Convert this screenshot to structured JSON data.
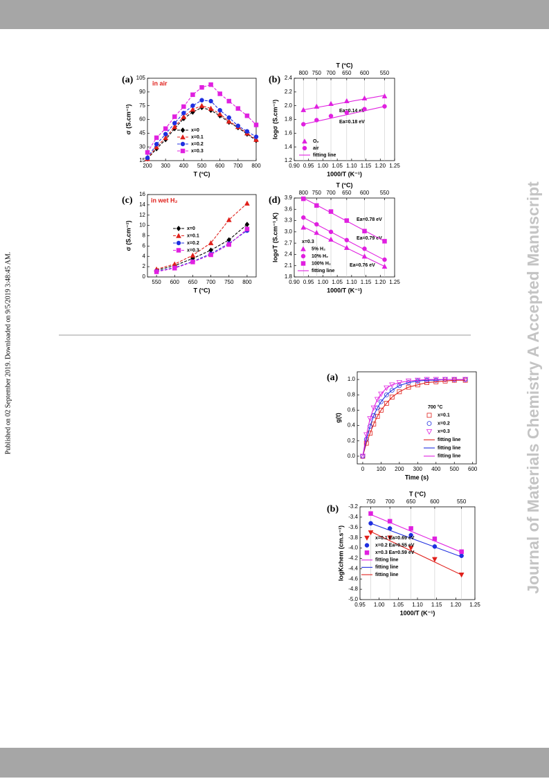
{
  "side_note": "Published on 02 September 2019. Downloaded on 9/5/2019 3:48:45 AM.",
  "watermark": "Journal of Materials Chemistry A Accepted Manuscript",
  "chart_data": [
    {
      "type": "line",
      "panel_label": "(a)",
      "annotations": [
        {
          "text": "in air",
          "color": "#e0201b"
        }
      ],
      "xlabel": "T (°C)",
      "ylabel": "σ (S.cm⁻¹)",
      "xlim": [
        200,
        800
      ],
      "xticks": [
        200,
        300,
        400,
        500,
        600,
        700,
        800
      ],
      "ylim": [
        15,
        105
      ],
      "yticks": [
        15,
        30,
        45,
        60,
        75,
        90,
        105
      ],
      "x": [
        200,
        250,
        300,
        350,
        400,
        450,
        500,
        550,
        600,
        650,
        700,
        750,
        800
      ],
      "series": [
        {
          "name": "x=0",
          "color": "#000000",
          "marker": "diamond",
          "line": "dash",
          "values": [
            17,
            28,
            38,
            50,
            61,
            68,
            73,
            70,
            64,
            57,
            51,
            44,
            37
          ]
        },
        {
          "name": "x=0.1",
          "color": "#e0201b",
          "marker": "triangle",
          "line": "dash",
          "values": [
            17,
            30,
            40,
            52,
            63,
            71,
            75,
            72,
            66,
            58,
            52,
            45,
            38
          ]
        },
        {
          "name": "x=0.2",
          "color": "#1f2fe0",
          "marker": "circle",
          "line": "dash",
          "values": [
            18,
            33,
            44,
            56,
            67,
            75,
            81,
            80,
            70,
            62,
            53,
            47,
            41
          ]
        },
        {
          "name": "x=0.3",
          "color": "#e020e0",
          "marker": "square",
          "line": "dash",
          "values": [
            24,
            40,
            50,
            63,
            74,
            87,
            95,
            98,
            88,
            80,
            72,
            64,
            54
          ]
        }
      ]
    },
    {
      "type": "scatter",
      "panel_label": "(b)",
      "annotations": [
        {
          "text": "Ea=0.14 eV",
          "color": "#000000"
        },
        {
          "text": "Ea=0.18 eV",
          "color": "#000000"
        }
      ],
      "xlabel": "1000/T (K⁻¹)",
      "ylabel": "logσ (S.cm⁻¹)",
      "x2label": "T (°C)",
      "x2grid": true,
      "xlim": [
        0.9,
        1.25
      ],
      "xticks": [
        {
          "value": 0.9,
          "label": "0.90"
        },
        0.95,
        {
          "value": 1,
          "label": "1.00"
        },
        1.05,
        {
          "value": 1.1,
          "label": "1.10"
        },
        1.15,
        {
          "value": 1.2,
          "label": "1.20"
        },
        1.25
      ],
      "x2ticks": [
        {
          "value": 0.932,
          "label": "800"
        },
        {
          "value": 0.978,
          "label": "750"
        },
        {
          "value": 1.028,
          "label": "700"
        },
        {
          "value": 1.083,
          "label": "650"
        },
        {
          "value": 1.145,
          "label": "600"
        },
        {
          "value": 1.215,
          "label": "550"
        }
      ],
      "ylim": [
        1.2,
        2.4
      ],
      "yticks": [
        1.2,
        1.4,
        1.6,
        1.8,
        {
          "value": 2,
          "label": "2.0"
        },
        2.2,
        2.4
      ],
      "x": [
        0.932,
        0.978,
        1.028,
        1.083,
        1.145,
        1.215
      ],
      "series": [
        {
          "name": "O₂",
          "color": "#e020e0",
          "marker": "triangle",
          "line": "none",
          "values": [
            1.94,
            1.99,
            2.03,
            2.07,
            2.11,
            2.14
          ]
        },
        {
          "name": "air",
          "color": "#e020e0",
          "marker": "circle",
          "line": "none",
          "values": [
            1.73,
            1.79,
            1.85,
            1.9,
            1.95,
            1.99
          ]
        },
        {
          "name": "fitting line",
          "color": "#e020e0",
          "marker": "none",
          "line": "solid",
          "x": [
            0.932,
            1.215,
            null,
            0.932,
            1.215
          ],
          "values": [
            1.94,
            2.15,
            null,
            1.73,
            1.99
          ]
        }
      ]
    },
    {
      "type": "line",
      "panel_label": "(c)",
      "annotations": [
        {
          "text": "in wet H₂",
          "color": "#e0201b"
        }
      ],
      "xlabel": "T (°C)",
      "ylabel": "σ (S.cm⁻¹)",
      "xlim": [
        525,
        825
      ],
      "xticks": [
        550,
        600,
        650,
        700,
        750,
        800
      ],
      "ylim": [
        0,
        16
      ],
      "yticks": [
        0,
        2,
        4,
        6,
        8,
        10,
        12,
        14,
        16
      ],
      "x": [
        550,
        600,
        650,
        700,
        750,
        800
      ],
      "series": [
        {
          "name": "x=0",
          "color": "#000000",
          "marker": "diamond",
          "line": "dash",
          "values": [
            1.3,
            2.2,
            3.6,
            5.2,
            7.2,
            10.2
          ]
        },
        {
          "name": "x=0.1",
          "color": "#e0201b",
          "marker": "triangle",
          "line": "dash",
          "values": [
            1.5,
            2.5,
            4.2,
            6.6,
            11.1,
            14.3
          ]
        },
        {
          "name": "x=0.2",
          "color": "#1f2fe0",
          "marker": "circle",
          "line": "dash",
          "values": [
            1.1,
            1.8,
            3.0,
            4.5,
            6.5,
            9.0
          ]
        },
        {
          "name": "x=0.3",
          "color": "#e020e0",
          "marker": "square",
          "line": "dash",
          "values": [
            1.0,
            1.7,
            2.9,
            4.3,
            6.3,
            9.3
          ]
        }
      ]
    },
    {
      "type": "scatter",
      "panel_label": "(d)",
      "annotations": [
        {
          "text": "Ea=0.78 eV",
          "color": "#000000"
        },
        {
          "text": "Ea=0.79 eV",
          "color": "#000000"
        },
        {
          "text": "Ea=0.76 eV",
          "color": "#000000"
        }
      ],
      "xlabel": "1000/T (K⁻¹)",
      "ylabel": "logσT (S.cm⁻¹.K)",
      "x2label": "T (°C)",
      "x2grid": true,
      "legend_title": "x=0.3",
      "xlim": [
        0.9,
        1.25
      ],
      "xticks": [
        {
          "value": 0.9,
          "label": "0.90"
        },
        0.95,
        {
          "value": 1,
          "label": "1.00"
        },
        1.05,
        {
          "value": 1.1,
          "label": "1.10"
        },
        1.15,
        {
          "value": 1.2,
          "label": "1.20"
        },
        1.25
      ],
      "x2ticks": [
        {
          "value": 0.932,
          "label": "800"
        },
        {
          "value": 0.978,
          "label": "750"
        },
        {
          "value": 1.028,
          "label": "700"
        },
        {
          "value": 1.083,
          "label": "650"
        },
        {
          "value": 1.145,
          "label": "600"
        },
        {
          "value": 1.215,
          "label": "550"
        }
      ],
      "ylim": [
        1.8,
        3.9
      ],
      "yticks": [
        1.8,
        2.1,
        2.4,
        2.7,
        {
          "value": 3,
          "label": "3.0"
        },
        3.3,
        3.6,
        3.9
      ],
      "x": [
        0.932,
        0.978,
        1.028,
        1.083,
        1.145,
        1.215
      ],
      "series": [
        {
          "name": "5%    H₂",
          "color": "#e020e0",
          "marker": "triangle",
          "line": "none",
          "values": [
            3.12,
            2.98,
            2.8,
            2.58,
            2.35,
            2.08
          ]
        },
        {
          "name": "10%   H₂",
          "color": "#e020e0",
          "marker": "circle",
          "line": "none",
          "values": [
            3.38,
            3.2,
            3.0,
            2.78,
            2.55,
            2.26
          ]
        },
        {
          "name": "100% H₂",
          "color": "#e020e0",
          "marker": "square",
          "line": "none",
          "values": [
            3.88,
            3.7,
            3.54,
            3.3,
            3.02,
            2.75
          ]
        },
        {
          "name": "fitting line",
          "color": "#e020e0",
          "marker": "none",
          "line": "solid",
          "x": [
            0.932,
            1.215,
            null,
            0.932,
            1.215,
            null,
            0.932,
            1.215
          ],
          "values": [
            3.13,
            2.08,
            null,
            3.38,
            2.25,
            null,
            3.9,
            2.75
          ]
        }
      ]
    },
    {
      "type": "scatter",
      "panel_label": "(a)",
      "annotations": [],
      "xlabel": "Time (s)",
      "ylabel": "g(t)",
      "legend_title": "700 °C",
      "xlim": [
        -30,
        620
      ],
      "xticks": [
        0,
        100,
        200,
        300,
        400,
        500,
        600
      ],
      "ylim": [
        -0.1,
        1.1
      ],
      "yticks": [
        {
          "value": 0,
          "label": "0.0"
        },
        0.2,
        0.4,
        0.6,
        0.8,
        {
          "value": 1,
          "label": "1.0"
        }
      ],
      "x": [
        0,
        20,
        40,
        60,
        80,
        100,
        130,
        160,
        200,
        250,
        300,
        350,
        400,
        450,
        500,
        560
      ],
      "series": [
        {
          "name": "x=0.1",
          "color": "#e0201b",
          "marker": "open-square",
          "line": "none",
          "values": [
            0,
            0.17,
            0.3,
            0.42,
            0.52,
            0.6,
            0.69,
            0.77,
            0.84,
            0.9,
            0.93,
            0.96,
            0.97,
            0.98,
            0.99,
            0.99
          ]
        },
        {
          "name": "x=0.2",
          "color": "#1f2fe0",
          "marker": "open-circle",
          "line": "none",
          "values": [
            0,
            0.22,
            0.39,
            0.53,
            0.63,
            0.71,
            0.8,
            0.86,
            0.92,
            0.96,
            0.98,
            0.99,
            0.99,
            1,
            1,
            1
          ]
        },
        {
          "name": "x=0.3",
          "color": "#e020e0",
          "marker": "open-triangle-down",
          "line": "none",
          "values": [
            0,
            0.28,
            0.49,
            0.63,
            0.74,
            0.81,
            0.89,
            0.93,
            0.96,
            0.98,
            0.99,
            1,
            1,
            1,
            1,
            1
          ]
        },
        {
          "name": "fitting line",
          "color": "#e0201b",
          "marker": "none",
          "line": "solid",
          "values": [
            0,
            0.17,
            0.3,
            0.42,
            0.52,
            0.6,
            0.69,
            0.77,
            0.84,
            0.9,
            0.93,
            0.96,
            0.97,
            0.98,
            0.99,
            0.99
          ]
        },
        {
          "name": "fitting line",
          "color": "#1f2fe0",
          "marker": "none",
          "line": "solid",
          "values": [
            0,
            0.22,
            0.39,
            0.53,
            0.63,
            0.71,
            0.8,
            0.86,
            0.92,
            0.96,
            0.98,
            0.99,
            0.99,
            1,
            1,
            1
          ]
        },
        {
          "name": "fitting line",
          "color": "#e020e0",
          "marker": "none",
          "line": "solid",
          "values": [
            0,
            0.28,
            0.49,
            0.63,
            0.74,
            0.81,
            0.89,
            0.93,
            0.96,
            0.98,
            0.99,
            1,
            1,
            1,
            1,
            1
          ]
        }
      ]
    },
    {
      "type": "scatter",
      "panel_label": "(b)",
      "annotations": [],
      "xlabel": "1000/T (K⁻¹)",
      "ylabel": "logKchem (cm.s⁻¹)",
      "x2label": "T (°C)",
      "x2grid": true,
      "xlim": [
        0.95,
        1.25
      ],
      "xticks": [
        0.95,
        {
          "value": 1,
          "label": "1.00"
        },
        1.05,
        {
          "value": 1.1,
          "label": "1.10"
        },
        1.15,
        {
          "value": 1.2,
          "label": "1.20"
        },
        1.25
      ],
      "x2ticks": [
        {
          "value": 0.978,
          "label": "750"
        },
        {
          "value": 1.028,
          "label": "700"
        },
        {
          "value": 1.083,
          "label": "650"
        },
        {
          "value": 1.145,
          "label": "600"
        },
        {
          "value": 1.215,
          "label": "550"
        }
      ],
      "ylim": [
        -5,
        -3.2
      ],
      "yticks": [
        -3.2,
        -3.4,
        -3.6,
        -3.8,
        {
          "value": -4,
          "label": "-4.0"
        },
        -4.2,
        -4.4,
        -4.6,
        -4.8,
        {
          "value": -5,
          "label": "-5.0"
        }
      ],
      "x": [
        0.978,
        1.028,
        1.083,
        1.145,
        1.215
      ],
      "series": [
        {
          "name": "x=0.1 Ea=0.69 eV",
          "color": "#e0201b",
          "marker": "triangle-down",
          "line": "none",
          "values": [
            -3.7,
            -3.8,
            -4.0,
            -4.22,
            -4.52
          ]
        },
        {
          "name": "x=0.2 Ea=0.55 eV",
          "color": "#1f2fe0",
          "marker": "circle",
          "line": "none",
          "values": [
            -3.52,
            -3.62,
            -3.75,
            -3.97,
            -4.15
          ]
        },
        {
          "name": "x=0.3 Ea=0.59 eV",
          "color": "#e020e0",
          "marker": "square",
          "line": "none",
          "values": [
            -3.33,
            -3.48,
            -3.62,
            -3.82,
            -4.07
          ]
        },
        {
          "name": "fitting line",
          "color": "#e020e0",
          "marker": "none",
          "line": "solid",
          "x": [
            0.978,
            1.215
          ],
          "values": [
            -3.35,
            -4.08
          ]
        },
        {
          "name": "fitting line",
          "color": "#1f2fe0",
          "marker": "none",
          "line": "solid",
          "x": [
            0.978,
            1.215
          ],
          "values": [
            -3.52,
            -4.17
          ]
        },
        {
          "name": "fitting line",
          "color": "#e0201b",
          "marker": "none",
          "line": "solid",
          "x": [
            0.978,
            1.215
          ],
          "values": [
            -3.68,
            -4.52
          ]
        }
      ]
    }
  ]
}
